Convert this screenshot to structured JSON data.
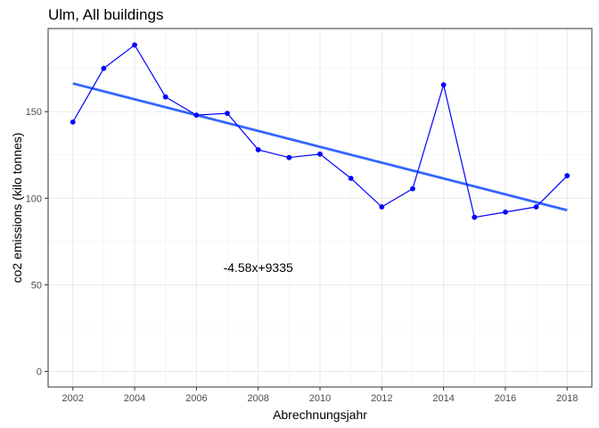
{
  "chart_data": {
    "type": "line",
    "title": "Ulm, All buildings",
    "xlabel": "Abrechnungsjahr",
    "ylabel": "co2 emissions (kilo tonnes)",
    "xlim": [
      2001.2,
      2018.8
    ],
    "ylim": [
      -9,
      198
    ],
    "x_ticks": [
      2002,
      2004,
      2006,
      2008,
      2010,
      2012,
      2014,
      2016,
      2018
    ],
    "y_ticks": [
      0,
      50,
      100,
      150
    ],
    "grid": true,
    "series": [
      {
        "x": [
          2002,
          2003,
          2004,
          2005,
          2006,
          2007,
          2008,
          2009,
          2010,
          2011,
          2012,
          2013,
          2014,
          2015,
          2016,
          2017,
          2018
        ],
        "values": [
          144,
          175,
          188.5,
          158.5,
          148,
          149,
          128,
          123.5,
          125.5,
          111.5,
          95,
          105.5,
          165.5,
          89,
          92,
          95,
          113
        ],
        "color": "#0000ff"
      }
    ],
    "fit_line": {
      "x": [
        2002,
        2018
      ],
      "y": [
        166.3,
        93.1
      ],
      "color": "#3366ff"
    },
    "annotation": {
      "text": "-4.58x+9335",
      "x": 2008,
      "y": 60
    }
  }
}
